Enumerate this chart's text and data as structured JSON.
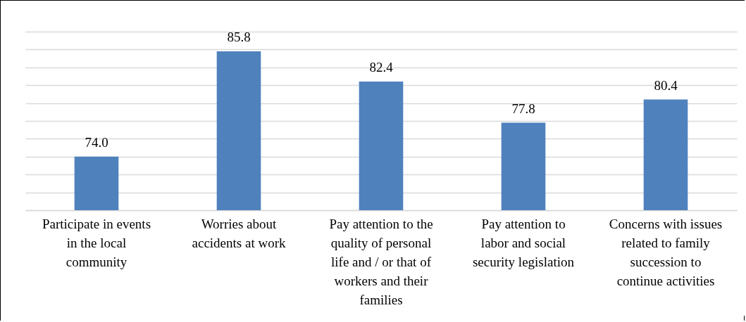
{
  "chart_data": {
    "type": "bar",
    "categories": [
      "Participate in events in the local community",
      "Worries about accidents at work",
      "Pay attention to the quality of personal life and / or that of workers and their families",
      "Pay attention to labor and social security legislation",
      "Concerns with issues related to family succession to continue activities"
    ],
    "values": [
      74.0,
      85.8,
      82.4,
      77.8,
      80.4
    ],
    "color": "#4f81bd",
    "value_labels": [
      "74.0",
      "85.8",
      "82.4",
      "77.8",
      "80.4"
    ],
    "ylim": [
      68,
      88
    ],
    "grid": "y",
    "tick_labels": "x"
  }
}
